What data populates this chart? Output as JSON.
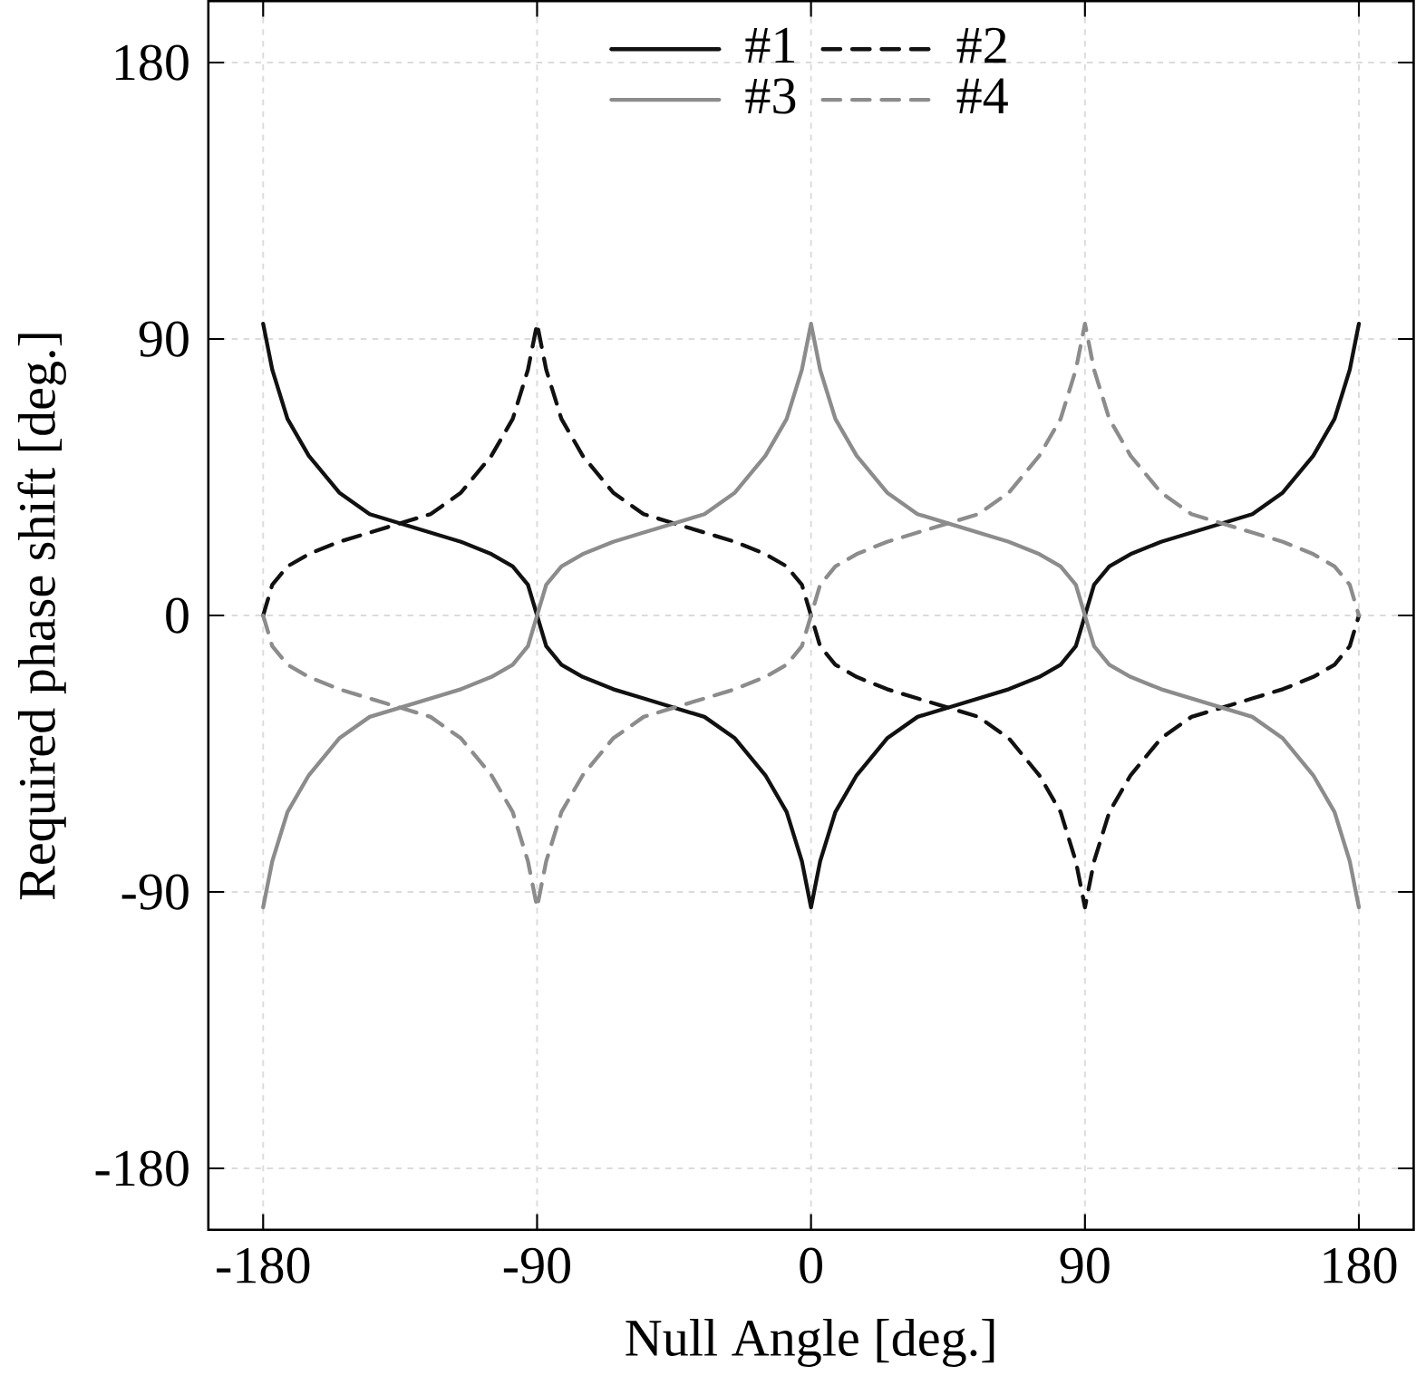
{
  "chart_data": {
    "type": "line",
    "xlabel": "Null Angle [deg.]",
    "ylabel": "Required phase shift [deg.]",
    "x": [
      -180,
      -177,
      -172,
      -165,
      -155,
      -145,
      -135,
      -125,
      -115,
      -105,
      -98,
      -93,
      -90,
      -87,
      -82,
      -75,
      -65,
      -55,
      -45,
      -35,
      -25,
      -15,
      -8,
      -3,
      0,
      3,
      8,
      15,
      25,
      35,
      45,
      55,
      65,
      75,
      82,
      87,
      90,
      93,
      98,
      105,
      115,
      125,
      135,
      145,
      155,
      165,
      172,
      177,
      180
    ],
    "series": [
      {
        "name": "#1",
        "color": "#111111",
        "line_style": "solid",
        "values": [
          95,
          80,
          64,
          52,
          40,
          33,
          30,
          27,
          24,
          20,
          16,
          10,
          0,
          -10,
          -16,
          -20,
          -24,
          -27,
          -30,
          -33,
          -40,
          -52,
          -64,
          -80,
          -95,
          -80,
          -64,
          -52,
          -40,
          -33,
          -30,
          -27,
          -24,
          -20,
          -16,
          -10,
          0,
          10,
          16,
          20,
          24,
          27,
          30,
          33,
          40,
          52,
          64,
          80,
          95
        ]
      },
      {
        "name": "#2",
        "color": "#111111",
        "line_style": "dashed",
        "values": [
          0,
          10,
          16,
          20,
          24,
          27,
          30,
          33,
          40,
          52,
          64,
          80,
          95,
          80,
          64,
          52,
          40,
          33,
          30,
          27,
          24,
          20,
          16,
          10,
          0,
          -10,
          -16,
          -20,
          -24,
          -27,
          -30,
          -33,
          -40,
          -52,
          -64,
          -80,
          -95,
          -80,
          -64,
          -52,
          -40,
          -33,
          -30,
          -27,
          -24,
          -20,
          -16,
          -10,
          0
        ]
      },
      {
        "name": "#3",
        "color": "#8c8c8c",
        "line_style": "solid",
        "values": [
          -95,
          -80,
          -64,
          -52,
          -40,
          -33,
          -30,
          -27,
          -24,
          -20,
          -16,
          -10,
          0,
          10,
          16,
          20,
          24,
          27,
          30,
          33,
          40,
          52,
          64,
          80,
          95,
          80,
          64,
          52,
          40,
          33,
          30,
          27,
          24,
          20,
          16,
          10,
          0,
          -10,
          -16,
          -20,
          -24,
          -27,
          -30,
          -33,
          -40,
          -52,
          -64,
          -80,
          -95
        ]
      },
      {
        "name": "#4",
        "color": "#8c8c8c",
        "line_style": "dashed",
        "values": [
          0,
          -10,
          -16,
          -20,
          -24,
          -27,
          -30,
          -33,
          -40,
          -52,
          -64,
          -80,
          -95,
          -80,
          -64,
          -52,
          -40,
          -33,
          -30,
          -27,
          -24,
          -20,
          -16,
          -10,
          0,
          10,
          16,
          20,
          24,
          27,
          30,
          33,
          40,
          52,
          64,
          80,
          95,
          80,
          64,
          52,
          40,
          33,
          30,
          27,
          24,
          20,
          16,
          10,
          0
        ]
      }
    ],
    "xlim": [
      -198,
      198
    ],
    "ylim": [
      -200,
      200
    ],
    "xticks": [
      -180,
      -90,
      0,
      90,
      180
    ],
    "yticks": [
      -180,
      -90,
      0,
      90,
      180
    ],
    "grid": true,
    "legend": "top"
  }
}
